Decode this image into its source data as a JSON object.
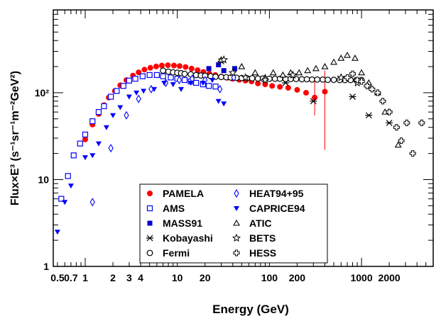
{
  "chart_data": {
    "type": "scatter",
    "title": "",
    "xlabel": "Energy (GeV)",
    "ylabel": "Flux×E³ (s⁻¹sr⁻¹m⁻²GeV²)",
    "xscale": "log",
    "yscale": "log",
    "xlim": [
      0.45,
      6000
    ],
    "ylim": [
      1,
      900
    ],
    "grid": false,
    "legend_position": "bottom-center",
    "x_tick_labels": [
      {
        "value": 0.5,
        "label": "0.5"
      },
      {
        "value": 0.7,
        "label": "0.7"
      },
      {
        "value": 1,
        "label": "1"
      },
      {
        "value": 2,
        "label": "2"
      },
      {
        "value": 3,
        "label": "3"
      },
      {
        "value": 4,
        "label": "4"
      },
      {
        "value": 10,
        "label": "10"
      },
      {
        "value": 20,
        "label": "20"
      },
      {
        "value": 100,
        "label": "100"
      },
      {
        "value": 200,
        "label": "200"
      },
      {
        "value": 1000,
        "label": "1000"
      },
      {
        "value": 2000,
        "label": "2000"
      }
    ],
    "y_tick_labels": [
      {
        "value": 1,
        "label": "1"
      },
      {
        "value": 10,
        "label": "10"
      },
      {
        "value": 100,
        "label": "10²"
      }
    ],
    "series": [
      {
        "name": "PAMELA",
        "marker": "filled-circle",
        "color": "#ff0000",
        "points": [
          [
            1.0,
            29
          ],
          [
            1.2,
            43
          ],
          [
            1.4,
            57
          ],
          [
            1.6,
            72
          ],
          [
            1.8,
            88
          ],
          [
            2.1,
            105
          ],
          [
            2.4,
            122
          ],
          [
            2.8,
            140
          ],
          [
            3.3,
            158
          ],
          [
            3.8,
            172
          ],
          [
            4.4,
            185
          ],
          [
            5.1,
            194
          ],
          [
            5.9,
            201
          ],
          [
            6.8,
            206
          ],
          [
            7.9,
            208
          ],
          [
            9.2,
            206
          ],
          [
            10.6,
            203
          ],
          [
            12.3,
            198
          ],
          [
            14.3,
            190
          ],
          [
            16.6,
            182
          ],
          [
            19.2,
            174
          ],
          [
            22.3,
            166
          ],
          [
            25.9,
            160
          ],
          [
            30,
            154
          ],
          [
            35,
            149
          ],
          [
            40,
            145
          ],
          [
            47,
            141
          ],
          [
            55,
            138
          ],
          [
            64,
            135
          ],
          [
            75,
            128
          ],
          [
            90,
            125
          ],
          [
            107,
            120
          ],
          [
            130,
            117
          ],
          [
            160,
            114
          ],
          [
            200,
            108
          ],
          [
            250,
            100
          ],
          [
            310,
            88
          ],
          [
            400,
            103
          ]
        ],
        "err_low": [
          [
            310,
            55
          ],
          [
            400,
            22
          ]
        ],
        "err_high": [
          [
            310,
            140
          ],
          [
            400,
            180
          ]
        ]
      },
      {
        "name": "AMS",
        "marker": "open-square",
        "color": "#0000ff",
        "points": [
          [
            0.55,
            6
          ],
          [
            0.65,
            11
          ],
          [
            0.75,
            19
          ],
          [
            0.88,
            26
          ],
          [
            1.0,
            33
          ],
          [
            1.2,
            47
          ],
          [
            1.4,
            60
          ],
          [
            1.6,
            70
          ],
          [
            1.9,
            90
          ],
          [
            2.2,
            105
          ],
          [
            2.6,
            120
          ],
          [
            3.0,
            138
          ],
          [
            3.5,
            145
          ],
          [
            4.2,
            155
          ],
          [
            5.0,
            160
          ],
          [
            6.0,
            160
          ],
          [
            7.0,
            155
          ],
          [
            8.5,
            150
          ],
          [
            10,
            145
          ],
          [
            12,
            140
          ],
          [
            14,
            135
          ],
          [
            16,
            130
          ],
          [
            19,
            125
          ],
          [
            22,
            120
          ],
          [
            26,
            118
          ]
        ]
      },
      {
        "name": "MASS91",
        "marker": "filled-square",
        "color": "#0000cc",
        "points": [
          [
            17,
            160
          ],
          [
            22,
            190
          ],
          [
            28,
            210
          ],
          [
            32,
            180
          ],
          [
            42,
            190
          ]
        ]
      },
      {
        "name": "Kobayashi",
        "marker": "asterisk",
        "color": "#000000",
        "points": [
          [
            30,
            230
          ],
          [
            150,
            130
          ],
          [
            300,
            80
          ],
          [
            800,
            90
          ],
          [
            1200,
            55
          ],
          [
            2000,
            45
          ]
        ]
      },
      {
        "name": "Fermi",
        "marker": "open-circle",
        "color": "#000000",
        "points": [
          [
            7,
            180
          ],
          [
            8,
            175
          ],
          [
            9,
            172
          ],
          [
            10,
            170
          ],
          [
            11,
            168
          ],
          [
            12,
            165
          ],
          [
            14,
            163
          ],
          [
            16,
            160
          ],
          [
            18,
            158
          ],
          [
            20,
            157
          ],
          [
            23,
            155
          ],
          [
            26,
            153
          ],
          [
            30,
            152
          ],
          [
            34,
            151
          ],
          [
            38,
            150
          ],
          [
            44,
            149
          ],
          [
            50,
            148
          ],
          [
            57,
            147
          ],
          [
            65,
            147
          ],
          [
            75,
            146
          ],
          [
            85,
            146
          ],
          [
            100,
            145
          ],
          [
            115,
            145
          ],
          [
            130,
            145
          ],
          [
            150,
            144
          ],
          [
            170,
            144
          ],
          [
            195,
            144
          ],
          [
            225,
            143
          ],
          [
            255,
            143
          ],
          [
            290,
            142
          ],
          [
            330,
            142
          ],
          [
            380,
            142
          ],
          [
            430,
            141
          ],
          [
            500,
            141
          ],
          [
            580,
            140
          ],
          [
            660,
            140
          ],
          [
            760,
            140
          ],
          [
            880,
            140
          ],
          [
            1000,
            140
          ]
        ]
      },
      {
        "name": "HEAT94+95",
        "marker": "open-diamond",
        "color": "#0000ff",
        "points": [
          [
            1.2,
            5.5
          ],
          [
            1.9,
            23
          ],
          [
            2.8,
            55
          ],
          [
            3.8,
            85
          ],
          [
            5.2,
            110
          ],
          [
            7.5,
            130
          ],
          [
            10.5,
            140
          ],
          [
            14.5,
            145
          ],
          [
            20,
            140
          ],
          [
            29,
            110
          ],
          [
            41,
            150
          ]
        ]
      },
      {
        "name": "CAPRICE94",
        "marker": "filled-triangle-down",
        "color": "#0000ff",
        "points": [
          [
            0.5,
            2.5
          ],
          [
            0.6,
            5.5
          ],
          [
            0.7,
            8.5
          ],
          [
            1.0,
            18
          ],
          [
            1.2,
            19
          ],
          [
            1.4,
            26
          ],
          [
            1.7,
            40
          ],
          [
            2.0,
            55
          ],
          [
            2.4,
            68
          ],
          [
            3.0,
            90
          ],
          [
            3.6,
            100
          ],
          [
            4.3,
            105
          ],
          [
            5.6,
            110
          ],
          [
            7.2,
            130
          ],
          [
            9.0,
            125
          ],
          [
            11,
            110
          ],
          [
            14,
            130
          ],
          [
            19,
            130
          ],
          [
            24,
            140
          ],
          [
            28,
            80
          ],
          [
            32,
            75
          ]
        ]
      },
      {
        "name": "ATIC",
        "marker": "open-triangle-up",
        "color": "#000000",
        "points": [
          [
            30,
            240
          ],
          [
            50,
            200
          ],
          [
            70,
            170
          ],
          [
            90,
            150
          ],
          [
            110,
            170
          ],
          [
            140,
            160
          ],
          [
            170,
            170
          ],
          [
            210,
            170
          ],
          [
            260,
            180
          ],
          [
            320,
            190
          ],
          [
            400,
            200
          ],
          [
            500,
            225
          ],
          [
            600,
            250
          ],
          [
            700,
            270
          ],
          [
            850,
            250
          ],
          [
            1000,
            170
          ],
          [
            1200,
            130
          ],
          [
            1500,
            100
          ],
          [
            1800,
            60
          ],
          [
            2500,
            25
          ]
        ]
      },
      {
        "name": "BETS",
        "marker": "open-star",
        "color": "#000000",
        "points": [
          [
            32,
            240
          ],
          [
            40,
            170
          ],
          [
            55,
            150
          ],
          [
            90,
            140
          ],
          [
            180,
            160
          ],
          [
            600,
            150
          ],
          [
            900,
            130
          ]
        ]
      },
      {
        "name": "HESS",
        "marker": "open-cross",
        "color": "#000000",
        "points": [
          [
            700,
            150
          ],
          [
            800,
            165
          ],
          [
            900,
            140
          ],
          [
            1000,
            135
          ],
          [
            1150,
            120
          ],
          [
            1300,
            110
          ],
          [
            1500,
            100
          ],
          [
            1700,
            80
          ],
          [
            2000,
            60
          ],
          [
            2400,
            40
          ],
          [
            2700,
            28
          ],
          [
            3100,
            45
          ],
          [
            3600,
            20
          ],
          [
            4500,
            45
          ]
        ]
      }
    ],
    "legend_entries": [
      {
        "label": "PAMELA",
        "series": "PAMELA"
      },
      {
        "label": "HEAT94+95",
        "series": "HEAT94+95"
      },
      {
        "label": "AMS",
        "series": "AMS"
      },
      {
        "label": "CAPRICE94",
        "series": "CAPRICE94"
      },
      {
        "label": "MASS91",
        "series": "MASS91"
      },
      {
        "label": "ATIC",
        "series": "ATIC"
      },
      {
        "label": "Kobayashi",
        "series": "Kobayashi"
      },
      {
        "label": "BETS",
        "series": "BETS"
      },
      {
        "label": "Fermi",
        "series": "Fermi"
      },
      {
        "label": "HESS",
        "series": "HESS"
      }
    ]
  }
}
